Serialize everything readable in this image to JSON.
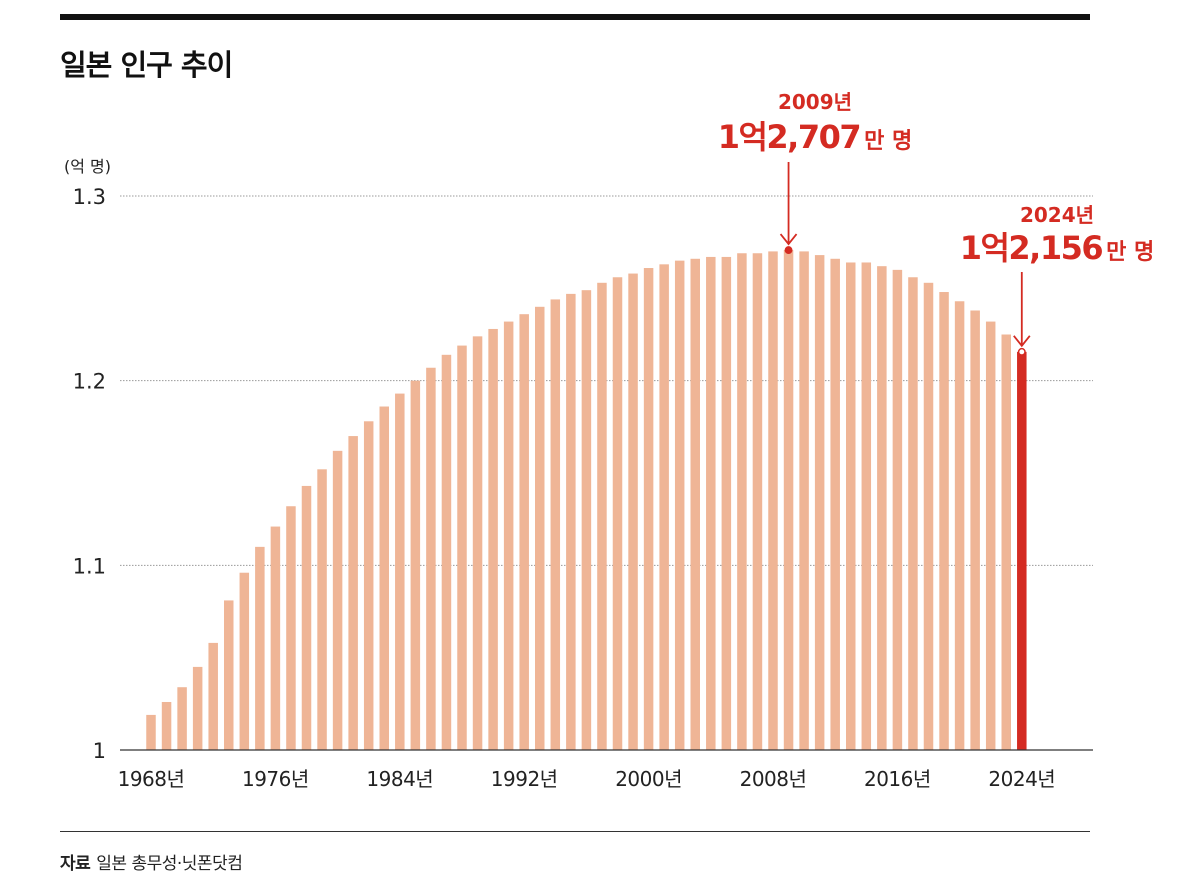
{
  "page": {
    "title": "일본 인구 추이",
    "source_label": "자료",
    "source_text": "일본 총무성·닛폰닷컴"
  },
  "colors": {
    "bar": "#EFB596",
    "highlight": "#D42B22",
    "gridline": "#9a9a9a",
    "text": "#222222"
  },
  "chart_data": {
    "type": "bar",
    "ylabel": "(억 명)",
    "ylim": [
      1.0,
      1.3
    ],
    "yticks": [
      {
        "value": 1.0,
        "label": "1"
      },
      {
        "value": 1.1,
        "label": "1.1"
      },
      {
        "value": 1.2,
        "label": "1.2"
      },
      {
        "value": 1.3,
        "label": "1.3"
      }
    ],
    "grid": "horizontal",
    "xticks": [
      {
        "year": 1968,
        "label": "1968년"
      },
      {
        "year": 1976,
        "label": "1976년"
      },
      {
        "year": 1984,
        "label": "1984년"
      },
      {
        "year": 1992,
        "label": "1992년"
      },
      {
        "year": 2000,
        "label": "2000년"
      },
      {
        "year": 2008,
        "label": "2008년"
      },
      {
        "year": 2016,
        "label": "2016년"
      },
      {
        "year": 2024,
        "label": "2024년"
      }
    ],
    "years": [
      1968,
      1969,
      1970,
      1971,
      1972,
      1973,
      1974,
      1975,
      1976,
      1977,
      1978,
      1979,
      1980,
      1981,
      1982,
      1983,
      1984,
      1985,
      1986,
      1987,
      1988,
      1989,
      1990,
      1991,
      1992,
      1993,
      1994,
      1995,
      1996,
      1997,
      1998,
      1999,
      2000,
      2001,
      2002,
      2003,
      2004,
      2005,
      2006,
      2007,
      2008,
      2009,
      2010,
      2011,
      2012,
      2013,
      2014,
      2015,
      2016,
      2017,
      2018,
      2019,
      2020,
      2021,
      2022,
      2023,
      2024
    ],
    "values": [
      1.019,
      1.026,
      1.034,
      1.045,
      1.058,
      1.081,
      1.096,
      1.11,
      1.121,
      1.132,
      1.143,
      1.152,
      1.162,
      1.17,
      1.178,
      1.186,
      1.193,
      1.2,
      1.207,
      1.214,
      1.219,
      1.224,
      1.228,
      1.232,
      1.236,
      1.24,
      1.244,
      1.247,
      1.249,
      1.253,
      1.256,
      1.258,
      1.261,
      1.263,
      1.265,
      1.266,
      1.267,
      1.267,
      1.269,
      1.269,
      1.27,
      1.2707,
      1.27,
      1.268,
      1.266,
      1.264,
      1.264,
      1.262,
      1.26,
      1.256,
      1.253,
      1.248,
      1.243,
      1.238,
      1.232,
      1.225,
      1.2156
    ],
    "highlight_year": 2024,
    "annotations": [
      {
        "year": 2009,
        "value": 1.2707,
        "year_label": "2009년",
        "value_main": "1억2,707",
        "value_unit": "만 명"
      },
      {
        "year": 2024,
        "value": 1.2156,
        "year_label": "2024년",
        "value_main": "1억2,156",
        "value_unit": "만 명"
      }
    ]
  }
}
